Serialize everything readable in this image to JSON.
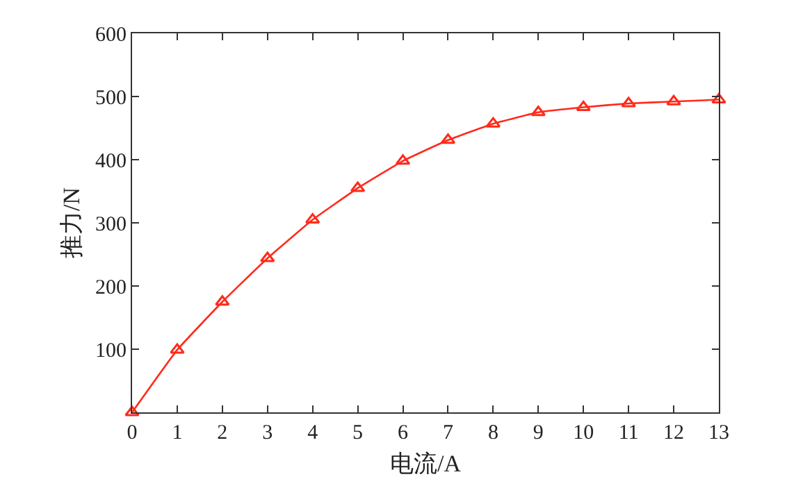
{
  "chart_data": {
    "type": "line",
    "xlabel": "电流/A",
    "ylabel": "推力/N",
    "x": [
      0,
      1,
      2,
      3,
      4,
      5,
      6,
      7,
      8,
      9,
      10,
      11,
      12,
      13
    ],
    "series": [
      {
        "color": "#ff2a1a",
        "values": [
          0,
          99,
          175,
          244,
          305,
          355,
          398,
          431,
          457,
          475,
          483,
          489,
          492,
          495
        ]
      }
    ],
    "xlim": [
      0,
      13
    ],
    "xticks": [
      0,
      1,
      2,
      3,
      4,
      5,
      6,
      7,
      8,
      9,
      10,
      11,
      12,
      13
    ],
    "ylim": [
      0,
      600
    ],
    "yticks": [
      {
        "value": 0,
        "label": null
      },
      100,
      200,
      300,
      400,
      500,
      600
    ],
    "marker": "triangle",
    "line_style": "solid",
    "legend": false
  }
}
